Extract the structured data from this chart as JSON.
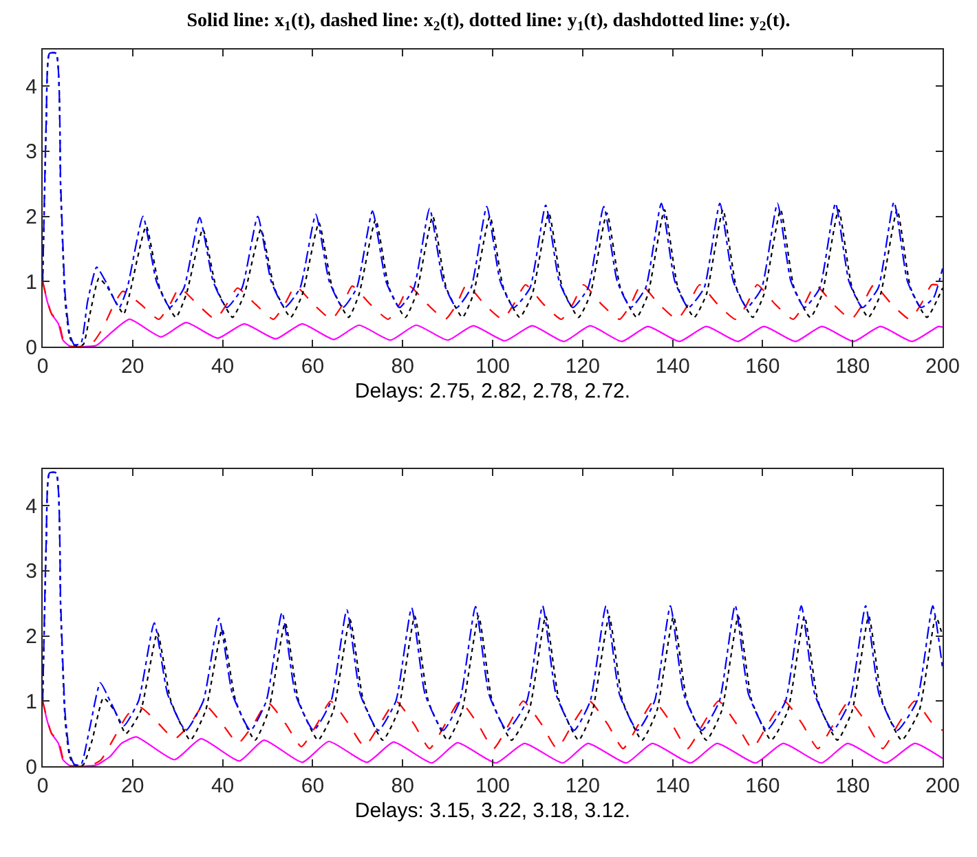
{
  "chart_data": [
    {
      "type": "line",
      "title": "Solid line: x$_{1}$(t), dashed line: x$_{2}$(t), dotted line: y$_{1}$(t), dashdotted line: y$_{2}$(t).",
      "xlabel": "Delays: 2.75, 2.82, 2.78, 2.72.",
      "xlim": [
        0,
        200
      ],
      "xticks": [
        0,
        20,
        40,
        60,
        80,
        100,
        120,
        140,
        160,
        180,
        200
      ],
      "ylim": [
        0,
        4.56
      ],
      "yticks": [
        0,
        1,
        2,
        3,
        4
      ],
      "marker": "none",
      "series": [
        {
          "color": "#ff00ff",
          "line_style": "solid",
          "x": [
            0,
            1,
            2,
            3.5,
            4.5,
            6,
            9,
            12,
            15,
            19.3,
            26.3,
            31.9,
            38.9,
            44.8,
            51.8,
            57.7,
            64.7,
            70.3,
            77.3,
            83,
            90,
            95.7,
            102.7,
            108.8,
            115.8,
            121.7,
            128.7,
            134.5,
            141.5,
            147.5,
            154.5,
            160.3,
            167.3,
            173.2,
            180.2,
            186.2,
            193.2,
            199.1,
            200
          ],
          "values": [
            1,
            0.7,
            0.5,
            0.35,
            0.1,
            0.01,
            0,
            0.02,
            0.2,
            0.42,
            0.15,
            0.37,
            0.13,
            0.35,
            0.12,
            0.35,
            0.11,
            0.33,
            0.1,
            0.33,
            0.1,
            0.32,
            0.09,
            0.32,
            0.08,
            0.32,
            0.08,
            0.31,
            0.08,
            0.31,
            0.08,
            0.31,
            0.08,
            0.31,
            0.08,
            0.31,
            0.08,
            0.31,
            0.3
          ]
        },
        {
          "color": "#ff0000",
          "line_style": "dashed",
          "x": [
            0,
            2,
            3.5,
            5,
            8,
            11,
            13.5,
            15.5,
            17.8,
            21.8,
            25.8,
            28.3,
            30.4,
            34.4,
            38.4,
            40.9,
            43.3,
            47.3,
            51.3,
            53.8,
            56.2,
            60.2,
            64.2,
            66.7,
            68.8,
            72.8,
            76.8,
            79.3,
            81.5,
            85.5,
            89.5,
            92,
            94.2,
            98.2,
            102.2,
            104.7,
            107.3,
            111.3,
            115.3,
            117.8,
            120.2,
            124.2,
            128.2,
            130.7,
            133,
            137,
            141,
            143.5,
            146,
            150,
            154,
            156.5,
            158.8,
            162.8,
            166.8,
            169.3,
            171.7,
            175.7,
            179.7,
            182.2,
            184.7,
            188.7,
            192.7,
            195.2,
            197.6,
            200
          ],
          "values": [
            1,
            0.5,
            0.4,
            0.02,
            0,
            0.05,
            0.3,
            0.6,
            0.85,
            0.65,
            0.42,
            0.65,
            0.9,
            0.65,
            0.42,
            0.65,
            0.9,
            0.65,
            0.42,
            0.65,
            0.93,
            0.65,
            0.42,
            0.65,
            0.93,
            0.65,
            0.42,
            0.65,
            0.93,
            0.65,
            0.42,
            0.65,
            0.95,
            0.65,
            0.42,
            0.65,
            0.95,
            0.65,
            0.42,
            0.65,
            0.95,
            0.65,
            0.42,
            0.65,
            0.95,
            0.65,
            0.42,
            0.65,
            0.95,
            0.65,
            0.42,
            0.65,
            0.95,
            0.65,
            0.42,
            0.65,
            0.95,
            0.65,
            0.42,
            0.65,
            0.95,
            0.65,
            0.42,
            0.65,
            0.95,
            0.93
          ]
        },
        {
          "color": "#000000",
          "line_style": "dotted",
          "x": [
            0,
            0.8,
            1.5,
            3,
            4,
            5,
            6,
            7,
            9,
            10.5,
            12.5,
            14.5,
            18,
            19.3,
            23,
            26,
            29.6,
            31.9,
            35.6,
            38.6,
            42.2,
            44.8,
            48.5,
            51.5,
            55.1,
            57.7,
            61.4,
            64.4,
            68,
            70.3,
            74,
            77,
            80.6,
            83,
            86.7,
            89.7,
            93.3,
            95.7,
            99.4,
            102.4,
            106,
            108.8,
            112.5,
            115.5,
            119.1,
            121.7,
            125.4,
            128.4,
            132,
            134.5,
            138.2,
            141.2,
            144.8,
            147.5,
            151.2,
            154.2,
            157.8,
            160.3,
            164,
            167,
            170.6,
            173.2,
            176.9,
            179.9,
            183.5,
            186.2,
            189.9,
            192.9,
            196.5,
            200
          ],
          "values": [
            1,
            3.4,
            4.5,
            4.5,
            2.4,
            0.7,
            0.15,
            0.02,
            0.03,
            0.5,
            1.05,
            0.9,
            0.5,
            0.8,
            1.85,
            0.9,
            0.45,
            0.8,
            1.8,
            0.9,
            0.45,
            0.8,
            1.8,
            0.9,
            0.45,
            0.8,
            1.9,
            0.9,
            0.45,
            0.8,
            1.95,
            0.9,
            0.45,
            0.8,
            2.0,
            0.9,
            0.45,
            0.8,
            2.0,
            0.9,
            0.45,
            0.8,
            2.05,
            0.9,
            0.45,
            0.8,
            2.05,
            0.9,
            0.45,
            0.8,
            2.1,
            0.9,
            0.45,
            0.8,
            2.1,
            0.9,
            0.45,
            0.8,
            2.1,
            0.9,
            0.45,
            0.8,
            2.1,
            0.9,
            0.45,
            0.8,
            2.1,
            0.9,
            0.45,
            0.9
          ]
        },
        {
          "color": "#0000ff",
          "line_style": "dashdot",
          "x": [
            0,
            0.8,
            1.5,
            3,
            4,
            5,
            6,
            7,
            8.5,
            10,
            12,
            14,
            17,
            18.8,
            22.3,
            25.3,
            28.3,
            31.4,
            34.9,
            37.9,
            40.9,
            44.3,
            47.8,
            50.8,
            53.8,
            57.2,
            60.7,
            63.7,
            66.7,
            69.8,
            73.3,
            76.3,
            79.3,
            82.5,
            86,
            89,
            92,
            95.2,
            98.7,
            101.7,
            104.7,
            108.3,
            111.8,
            114.8,
            117.8,
            121.2,
            124.7,
            127.7,
            130.7,
            134,
            137.5,
            140.5,
            143.5,
            147,
            150.5,
            153.5,
            156.5,
            159.8,
            163.3,
            166.3,
            169.3,
            172.7,
            176.2,
            179.2,
            182.2,
            185.7,
            189.2,
            192.2,
            195.2,
            198,
            200
          ],
          "values": [
            1,
            3.5,
            4.5,
            4.5,
            2.5,
            0.8,
            0.2,
            0.03,
            0.05,
            0.7,
            1.22,
            1.0,
            0.6,
            0.9,
            2.0,
            1.0,
            0.6,
            0.9,
            1.98,
            1.0,
            0.6,
            0.9,
            2.0,
            1.0,
            0.6,
            0.9,
            2.03,
            1.0,
            0.6,
            0.9,
            2.08,
            1.0,
            0.6,
            0.9,
            2.12,
            1.0,
            0.6,
            0.9,
            2.15,
            1.0,
            0.6,
            0.9,
            2.17,
            1.0,
            0.6,
            0.9,
            2.15,
            1.0,
            0.6,
            0.9,
            2.2,
            1.0,
            0.6,
            0.9,
            2.2,
            1.0,
            0.6,
            0.9,
            2.2,
            1.0,
            0.6,
            0.9,
            2.2,
            1.0,
            0.6,
            0.9,
            2.22,
            1.0,
            0.6,
            0.75,
            1.2
          ]
        }
      ]
    },
    {
      "type": "line",
      "xlabel": "Delays: 3.15, 3.22, 3.18, 3.12.",
      "xlim": [
        0,
        200
      ],
      "xticks": [
        0,
        20,
        40,
        60,
        80,
        100,
        120,
        140,
        160,
        180,
        200
      ],
      "ylim": [
        0,
        4.56
      ],
      "yticks": [
        0,
        1,
        2,
        3,
        4
      ],
      "marker": "none",
      "series": [
        {
          "color": "#ff00ff",
          "line_style": "solid",
          "x": [
            0,
            1,
            2,
            3.5,
            4.5,
            6,
            9,
            12,
            15,
            17.5,
            20.8,
            29.3,
            35.2,
            43.7,
            49.2,
            57.7,
            63.6,
            72.1,
            78,
            86.5,
            92.2,
            100.7,
            107.1,
            115.6,
            121.2,
            129.7,
            135.5,
            144,
            149.9,
            158.4,
            164.6,
            173.1,
            178.9,
            187.4,
            193.8,
            200
          ],
          "values": [
            1,
            0.7,
            0.5,
            0.35,
            0.1,
            0.01,
            0,
            0.02,
            0.15,
            0.35,
            0.45,
            0.1,
            0.42,
            0.08,
            0.4,
            0.06,
            0.38,
            0.06,
            0.37,
            0.05,
            0.36,
            0.05,
            0.35,
            0.05,
            0.35,
            0.05,
            0.35,
            0.05,
            0.35,
            0.05,
            0.35,
            0.05,
            0.35,
            0.05,
            0.35,
            0.12
          ]
        },
        {
          "color": "#ff0000",
          "line_style": "dashed",
          "x": [
            0,
            2,
            3.5,
            5,
            8,
            11,
            13,
            16,
            19,
            21.8,
            25.8,
            29.3,
            32.8,
            35.9,
            39.9,
            43.4,
            46.9,
            50,
            54,
            57.5,
            61,
            64,
            68,
            71.5,
            75,
            78.5,
            82.5,
            86,
            89.5,
            92.7,
            96.7,
            100.2,
            103.7,
            106.8,
            110.8,
            114.3,
            117.8,
            121.5,
            125.5,
            129,
            132.5,
            135.8,
            139.8,
            143.3,
            146.8,
            150.2,
            154.2,
            157.7,
            161.2,
            164.8,
            168.8,
            172.3,
            175.8,
            179.2,
            183.2,
            186.7,
            190.2,
            193.8,
            197.8,
            200
          ],
          "values": [
            1,
            0.5,
            0.4,
            0.02,
            0,
            0.02,
            0.1,
            0.45,
            0.8,
            0.9,
            0.65,
            0.42,
            0.65,
            0.95,
            0.65,
            0.35,
            0.65,
            0.98,
            0.65,
            0.3,
            0.65,
            1.0,
            0.65,
            0.3,
            0.65,
            1.0,
            0.65,
            0.27,
            0.65,
            1.0,
            0.65,
            0.27,
            0.65,
            1.0,
            0.65,
            0.27,
            0.65,
            1.0,
            0.65,
            0.27,
            0.65,
            1.0,
            0.65,
            0.27,
            0.65,
            1.0,
            0.65,
            0.27,
            0.65,
            1.0,
            0.65,
            0.27,
            0.65,
            1.0,
            0.65,
            0.27,
            0.65,
            1.0,
            0.65,
            0.55
          ]
        },
        {
          "color": "#000000",
          "line_style": "dotted",
          "x": [
            0,
            0.8,
            1.5,
            3,
            4,
            5,
            6,
            7,
            9,
            11,
            13.5,
            16,
            18.5,
            21.8,
            25.5,
            28.5,
            32.8,
            36.2,
            39.9,
            42.9,
            47.2,
            50.2,
            53.9,
            56.9,
            61.2,
            64.6,
            68.3,
            71.3,
            75.6,
            79,
            82.7,
            85.7,
            90,
            93.2,
            96.9,
            99.9,
            104.2,
            108.1,
            111.8,
            114.8,
            119.1,
            122.2,
            125.9,
            128.9,
            133.2,
            136.5,
            140.2,
            143.2,
            147.5,
            150.9,
            154.6,
            157.6,
            161.9,
            165.6,
            169.3,
            172.3,
            176.6,
            179.9,
            183.6,
            186.6,
            190.9,
            194.8,
            198.5,
            200
          ],
          "values": [
            1,
            3.4,
            4.5,
            4.5,
            2.4,
            0.7,
            0.15,
            0.02,
            0.02,
            0.4,
            1.05,
            0.85,
            0.5,
            0.85,
            2.05,
            1.0,
            0.4,
            0.85,
            2.1,
            1.0,
            0.4,
            0.85,
            2.2,
            1.0,
            0.4,
            0.85,
            2.25,
            1.0,
            0.4,
            0.85,
            2.3,
            1.0,
            0.4,
            0.85,
            2.3,
            1.0,
            0.4,
            0.85,
            2.3,
            1.0,
            0.4,
            0.85,
            2.3,
            1.0,
            0.4,
            0.85,
            2.3,
            1.0,
            0.4,
            0.85,
            2.3,
            1.0,
            0.4,
            0.85,
            2.3,
            1.0,
            0.4,
            0.85,
            2.3,
            1.0,
            0.4,
            0.85,
            2.3,
            2.0
          ]
        },
        {
          "color": "#0000ff",
          "line_style": "dashdot",
          "x": [
            0,
            0.8,
            1.5,
            3,
            4,
            5,
            6,
            7,
            8.5,
            10.5,
            12.8,
            15,
            18,
            21.3,
            24.8,
            27.8,
            31.8,
            35.7,
            39.2,
            42.2,
            46.2,
            49.7,
            53.2,
            56.2,
            60.2,
            64.1,
            67.6,
            70.6,
            74.6,
            78.5,
            82,
            85,
            89,
            92.7,
            96.2,
            99.2,
            103.2,
            107.6,
            111.1,
            114.1,
            118.1,
            121.7,
            125.2,
            128.2,
            132.2,
            136,
            139.5,
            142.5,
            146.5,
            150.4,
            153.9,
            156.9,
            160.9,
            165.1,
            168.6,
            171.6,
            175.6,
            179.4,
            182.9,
            185.9,
            189.9,
            194.3,
            197.8,
            200
          ],
          "values": [
            1,
            3.5,
            4.5,
            4.5,
            2.5,
            0.8,
            0.2,
            0.03,
            0.02,
            0.6,
            1.28,
            1.0,
            0.62,
            1.0,
            2.2,
            1.1,
            0.55,
            1.0,
            2.27,
            1.1,
            0.55,
            1.0,
            2.36,
            1.1,
            0.55,
            1.0,
            2.4,
            1.1,
            0.55,
            1.0,
            2.43,
            1.1,
            0.55,
            1.0,
            2.45,
            1.1,
            0.55,
            1.0,
            2.46,
            1.1,
            0.55,
            1.0,
            2.46,
            1.1,
            0.55,
            1.0,
            2.46,
            1.1,
            0.55,
            1.0,
            2.47,
            1.1,
            0.55,
            1.0,
            2.46,
            1.1,
            0.55,
            1.0,
            2.46,
            1.1,
            0.55,
            1.0,
            2.46,
            1.5
          ]
        }
      ]
    }
  ]
}
